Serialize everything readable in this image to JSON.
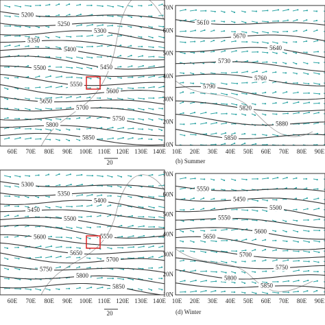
{
  "panels": [
    {
      "contour_labels": [
        "5200",
        "5250",
        "5300",
        "5350",
        "5400",
        "5450",
        "5500",
        "5550",
        "5600",
        "5650",
        "5700",
        "5750",
        "5800",
        "5850"
      ],
      "x_labels": [
        "60E",
        "70E",
        "80E",
        "90E",
        "100E",
        "110E",
        "120E",
        "130E",
        "140E"
      ],
      "scale_label": "20"
    },
    {
      "caption": "(b) Summer",
      "contour_labels": [
        "5610",
        "5670",
        "5640",
        "5730",
        "5760",
        "5790",
        "5820",
        "5880",
        "5850"
      ],
      "x_labels": [
        "10E",
        "20E",
        "30E",
        "40E",
        "50E",
        "60E",
        "70E",
        "80E",
        "90E"
      ],
      "y_labels": [
        "70N",
        "60N",
        "50N",
        "40N",
        "30N",
        "20N",
        "10N"
      ]
    },
    {
      "contour_labels": [
        "5300",
        "5350",
        "5400",
        "5450",
        "5500",
        "5550",
        "5600",
        "5650",
        "5700",
        "5750",
        "5800",
        "5850"
      ],
      "x_labels": [
        "60E",
        "70E",
        "80E",
        "90E",
        "100E",
        "110E",
        "120E",
        "130E",
        "140E"
      ],
      "scale_label": "20"
    },
    {
      "caption": "(d) Winter",
      "contour_labels": [
        "5550",
        "5450",
        "5500",
        "5550",
        "5600",
        "5650",
        "5700",
        "5750",
        "5800",
        "5850"
      ],
      "x_labels": [
        "10E",
        "20E",
        "30E",
        "40E",
        "50E",
        "60E",
        "70E",
        "80E",
        "90E"
      ],
      "y_labels": [
        "70N",
        "60N",
        "50N",
        "40N",
        "30N",
        "20N",
        "10N"
      ]
    }
  ]
}
